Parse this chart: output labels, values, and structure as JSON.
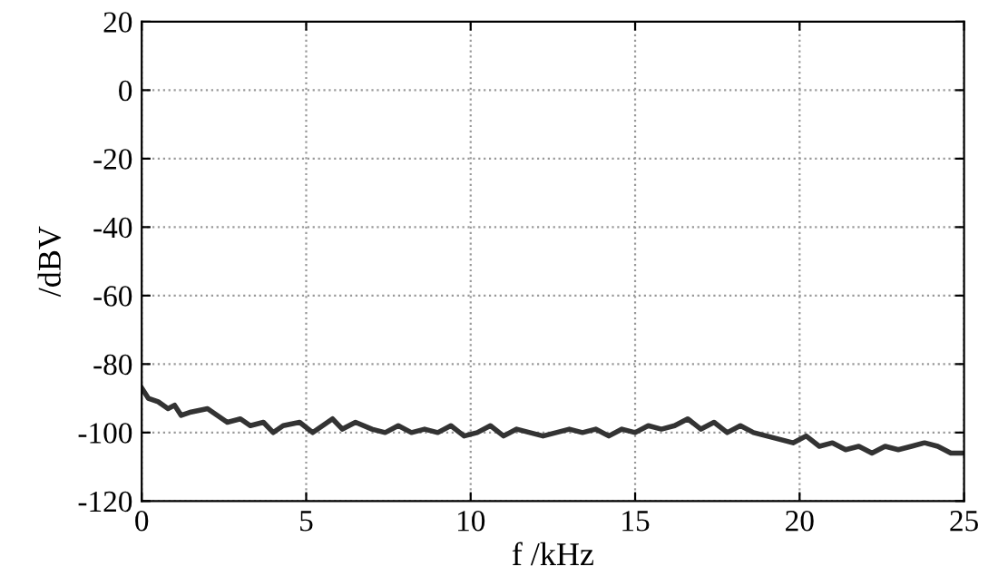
{
  "chart_data": {
    "type": "line",
    "xlabel": "f /kHz",
    "ylabel": "/dBV",
    "xlim": [
      0,
      25
    ],
    "ylim": [
      -120,
      20
    ],
    "xticks": [
      0,
      5,
      10,
      15,
      20,
      25
    ],
    "yticks": [
      -120,
      -100,
      -80,
      -60,
      -40,
      -20,
      0,
      20
    ],
    "grid": true,
    "line_style": "solid",
    "marker": "none",
    "series": [
      {
        "color": "#333333",
        "x": [
          0,
          0.2,
          0.5,
          0.8,
          1,
          1.2,
          1.5,
          2,
          2.3,
          2.6,
          3,
          3.3,
          3.7,
          4,
          4.3,
          4.8,
          5.2,
          5.5,
          5.8,
          6.1,
          6.5,
          7,
          7.4,
          7.8,
          8.2,
          8.6,
          9,
          9.4,
          9.8,
          10.2,
          10.6,
          11,
          11.4,
          11.8,
          12.2,
          12.6,
          13,
          13.4,
          13.8,
          14.2,
          14.6,
          15,
          15.4,
          15.8,
          16.2,
          16.6,
          17,
          17.4,
          17.8,
          18.2,
          18.6,
          19,
          19.4,
          19.8,
          20.2,
          20.6,
          21,
          21.4,
          21.8,
          22.2,
          22.6,
          23,
          23.4,
          23.8,
          24.2,
          24.6,
          25
        ],
        "values": [
          -87,
          -90,
          -91,
          -93,
          -92,
          -95,
          -94,
          -93,
          -95,
          -97,
          -96,
          -98,
          -97,
          -100,
          -98,
          -97,
          -100,
          -98,
          -96,
          -99,
          -97,
          -99,
          -100,
          -98,
          -100,
          -99,
          -100,
          -98,
          -101,
          -100,
          -98,
          -101,
          -99,
          -100,
          -101,
          -100,
          -99,
          -100,
          -99,
          -101,
          -99,
          -100,
          -98,
          -99,
          -98,
          -96,
          -99,
          -97,
          -100,
          -98,
          -100,
          -101,
          -102,
          -103,
          -101,
          -104,
          -103,
          -105,
          -104,
          -106,
          -104,
          -105,
          -104,
          -103,
          -104,
          -106,
          -106
        ]
      }
    ]
  }
}
